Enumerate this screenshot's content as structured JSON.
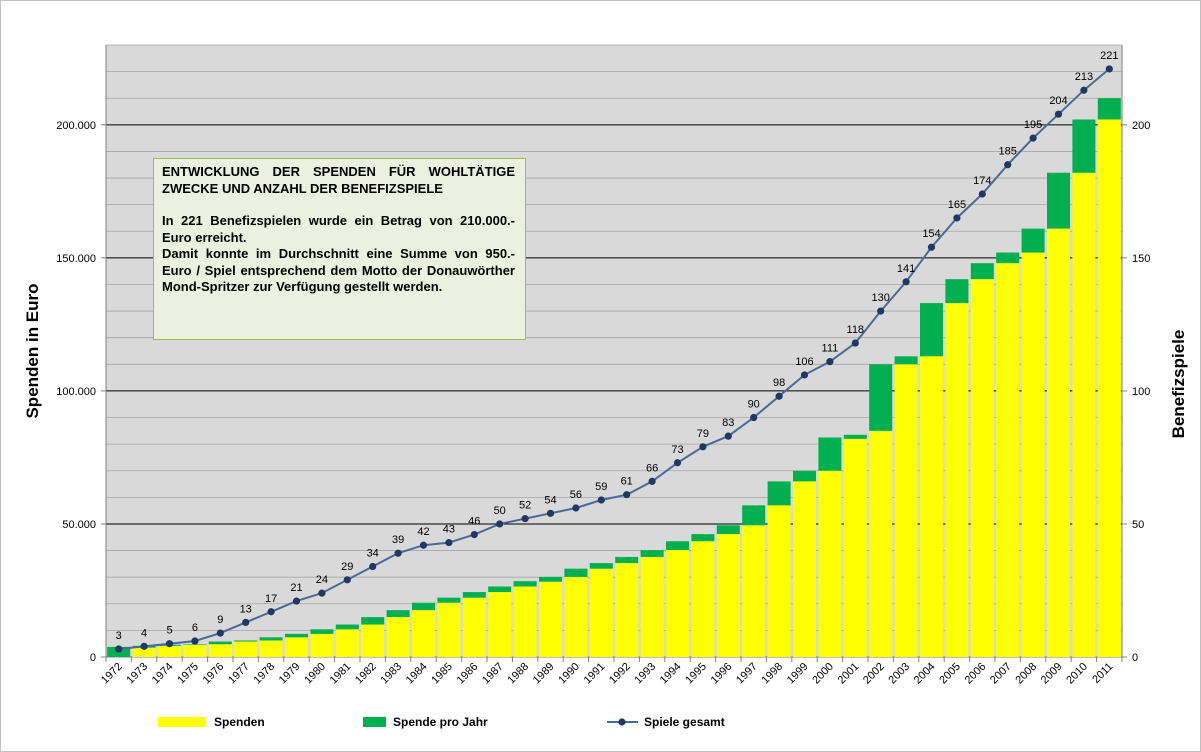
{
  "chart_data": {
    "type": "bar+line",
    "categories": [
      "1972",
      "1973",
      "1974",
      "1975",
      "1976",
      "1977",
      "1978",
      "1979",
      "1980",
      "1981",
      "1982",
      "1983",
      "1984",
      "1985",
      "1986",
      "1987",
      "1988",
      "1989",
      "1990",
      "1991",
      "1992",
      "1993",
      "1994",
      "1995",
      "1996",
      "1997",
      "1998",
      "1999",
      "2000",
      "2001",
      "2002",
      "2003",
      "2004",
      "2005",
      "2006",
      "2007",
      "2008",
      "2009",
      "2010",
      "2011"
    ],
    "series": [
      {
        "name": "Spenden",
        "kind": "stacked-bar",
        "axis": "left",
        "color": "#ffff00",
        "values": [
          0,
          3500,
          4200,
          4600,
          4800,
          5800,
          6200,
          7400,
          8700,
          10400,
          12200,
          15000,
          17600,
          20400,
          22300,
          24400,
          26500,
          28300,
          30100,
          33200,
          35300,
          37600,
          40200,
          43500,
          46200,
          49500,
          57000,
          66000,
          70000,
          82000,
          85000,
          110000,
          113000,
          133000,
          142000,
          148000,
          152000,
          161000,
          182000,
          202000
        ]
      },
      {
        "name": "Spende pro Jahr",
        "kind": "stacked-bar",
        "axis": "left",
        "color": "#00b050",
        "values": [
          3800,
          700,
          400,
          200,
          1000,
          400,
          1200,
          1300,
          1700,
          1800,
          2800,
          2600,
          2800,
          1900,
          2100,
          2100,
          2000,
          1800,
          3100,
          2100,
          2300,
          2600,
          3300,
          2700,
          3300,
          7500,
          9000,
          4000,
          12500,
          1500,
          25000,
          3000,
          20000,
          9000,
          6000,
          4000,
          9000,
          21000,
          20000,
          8000
        ]
      },
      {
        "name": "Spiele gesamt",
        "kind": "line",
        "axis": "right",
        "color": "#1f3864",
        "values": [
          3,
          4,
          5,
          6,
          9,
          13,
          17,
          21,
          24,
          29,
          34,
          39,
          42,
          43,
          46,
          50,
          52,
          54,
          56,
          59,
          61,
          66,
          73,
          79,
          83,
          90,
          98,
          106,
          111,
          118,
          130,
          141,
          154,
          165,
          174,
          185,
          195,
          204,
          213,
          221
        ]
      }
    ],
    "yaxis_left": {
      "label": "Spenden in Euro",
      "range": [
        0,
        230000
      ],
      "ticks": [
        0,
        50000,
        100000,
        150000,
        200000
      ],
      "tick_labels": [
        "0",
        "50.000",
        "100.000",
        "150.000",
        "200.000"
      ]
    },
    "yaxis_right": {
      "label": "Benefizspiele",
      "range": [
        0,
        230
      ],
      "ticks": [
        0,
        50,
        100,
        150,
        200
      ],
      "tick_labels": [
        "0",
        "50",
        "100",
        "150",
        "200"
      ]
    },
    "grid": true,
    "legend_position": "bottom",
    "colors": {
      "plot_bg": "#d9d9d9",
      "grid": "#000000",
      "minor_grid": "#a6a6a6",
      "axis": "#7f7f7f",
      "line": "#4a6a96",
      "marker": "#1f3864"
    }
  },
  "info_box": {
    "title": "ENTWICKLUNG DER SPENDEN FÜR WOHLTÄTIGE ZWECKE UND ANZAHL DER BENEFIZSPIELE",
    "line1": "In 221 Benefizspielen wurde ein Betrag von 210.000.- Euro erreicht.",
    "line2": "Damit konnte im Durchschnitt eine Summe von 950.- Euro / Spiel entsprechend dem Motto der Donauwörther Mond-Spritzer zur Verfügung gestellt werden."
  }
}
